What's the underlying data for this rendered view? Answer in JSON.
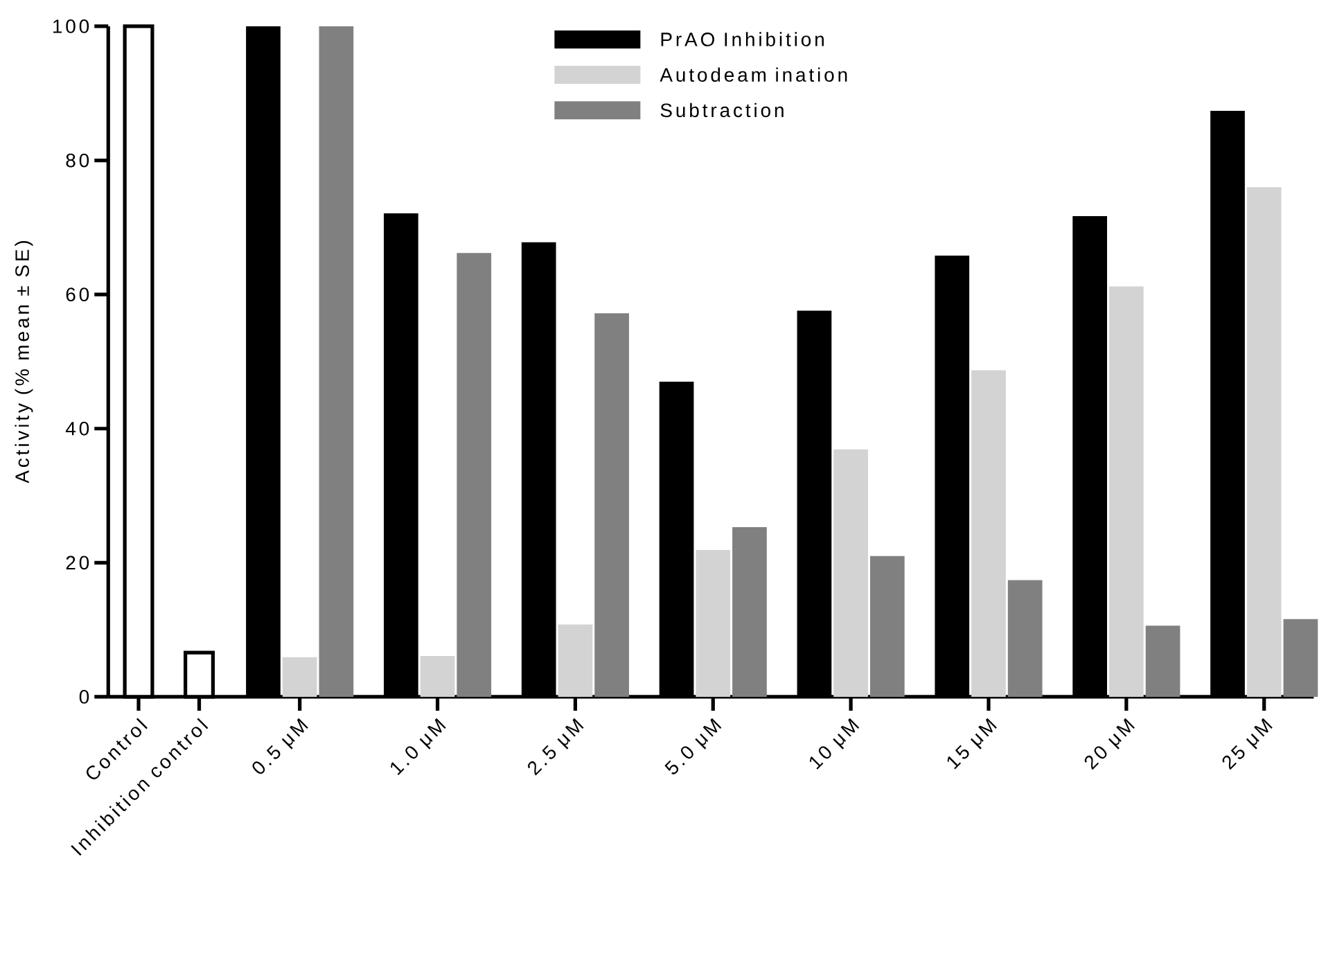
{
  "chart_data": {
    "type": "bar",
    "ylabel": "Activity (% mean ± SE)",
    "categories": [
      "Control",
      "Inhibition control",
      "0.5 μM",
      "1.0 μM",
      "2.5 μM",
      "5.0 μM",
      "10 μM",
      "15 μM",
      "20 μM",
      "25 μM"
    ],
    "series": [
      {
        "color": "#ffffff",
        "values": [
          100,
          6.6,
          null,
          null,
          null,
          null,
          null,
          null,
          null,
          null
        ]
      },
      {
        "name": "PrAO Inhibition",
        "color": "#000000",
        "values": [
          null,
          null,
          100,
          72.1,
          67.8,
          47.0,
          57.6,
          65.8,
          71.7,
          87.4
        ]
      },
      {
        "name": "Autodeam ination",
        "color": "#d3d3d3",
        "values": [
          null,
          null,
          5.9,
          6.1,
          10.8,
          21.9,
          36.9,
          48.7,
          61.2,
          76.0
        ]
      },
      {
        "name": "Subtraction",
        "color": "#808080",
        "values": [
          null,
          null,
          100,
          66.2,
          57.2,
          25.3,
          21.0,
          17.4,
          10.6,
          11.6
        ]
      }
    ],
    "ylim": [
      0,
      100
    ],
    "yticks": [
      0,
      20,
      40,
      60,
      80,
      100
    ],
    "legend": "top"
  }
}
